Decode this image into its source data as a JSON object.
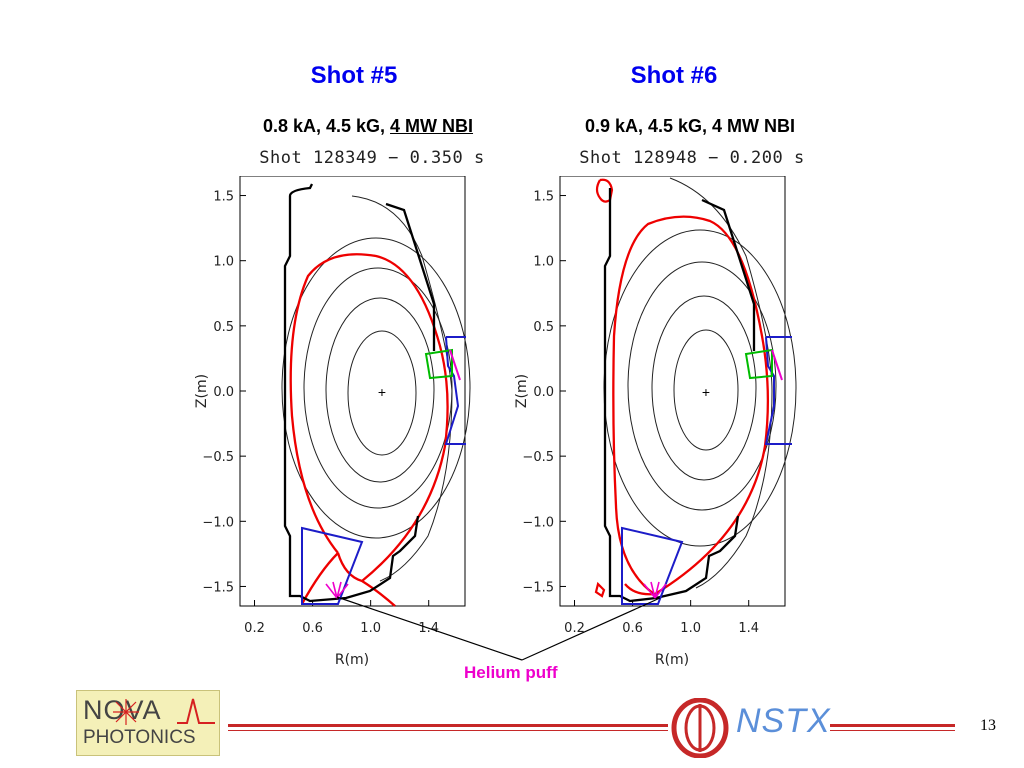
{
  "panels": [
    {
      "title": "Shot #5",
      "subtitle_plain": "0.8 kA, 4.5 kG, ",
      "subtitle_underlined": "4 MW NBI",
      "header": "Shot 128349 − 0.350 s"
    },
    {
      "title": "Shot #6",
      "subtitle_plain": "0.9 kA, 4.5 kG, 4 MW NBI",
      "subtitle_underlined": "",
      "header": "Shot 128948 − 0.200 s"
    }
  ],
  "axes": {
    "xlabel": "R(m)",
    "ylabel": "Z(m)",
    "xticks": [
      "0.2",
      "0.6",
      "1.0",
      "1.4"
    ],
    "yticks": [
      "1.5",
      "1.0",
      "0.5",
      "0.0",
      "−0.5",
      "−1.0",
      "−1.5"
    ],
    "xlim": [
      0.1,
      1.65
    ],
    "ylim": [
      -1.65,
      1.65
    ]
  },
  "annotation": {
    "label": "Helium puff",
    "color": "#ee00cc"
  },
  "colors": {
    "title": "#0000ee",
    "separatrix": "#ee0000",
    "vessel": "#000000",
    "divertor": "#1c1cc8",
    "antenna": "#00bb00",
    "puff": "#ee00cc"
  },
  "footer": {
    "page_number": "13",
    "left_logo": {
      "line1": "NOVA",
      "line2": "PHOTONICS"
    },
    "right_logo": {
      "text": "NSTX"
    }
  }
}
